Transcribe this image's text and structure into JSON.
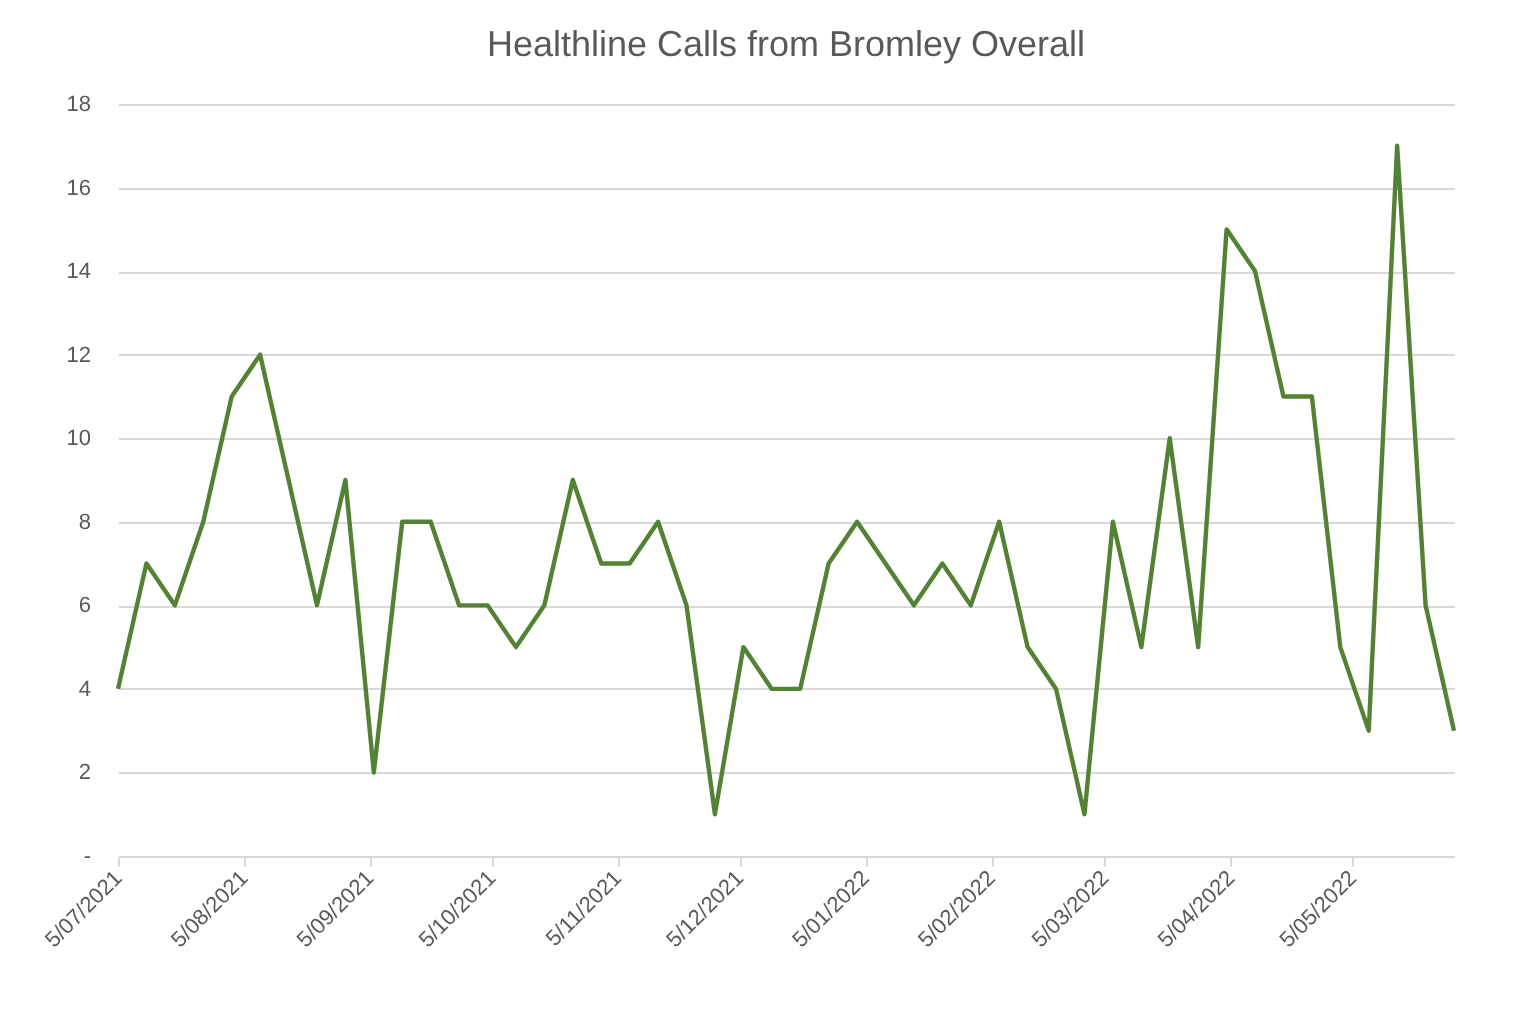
{
  "chart_data": {
    "type": "line",
    "title": "Healthline Calls from Bromley Overall",
    "x": [
      "2021-07-05",
      "2021-07-12",
      "2021-07-19",
      "2021-07-26",
      "2021-08-02",
      "2021-08-09",
      "2021-08-16",
      "2021-08-23",
      "2021-08-30",
      "2021-09-06",
      "2021-09-13",
      "2021-09-20",
      "2021-09-27",
      "2021-10-04",
      "2021-10-11",
      "2021-10-18",
      "2021-10-25",
      "2021-11-01",
      "2021-11-08",
      "2021-11-15",
      "2021-11-22",
      "2021-11-29",
      "2021-12-06",
      "2021-12-13",
      "2021-12-20",
      "2021-12-27",
      "2022-01-03",
      "2022-01-10",
      "2022-01-17",
      "2022-01-24",
      "2022-01-31",
      "2022-02-07",
      "2022-02-14",
      "2022-02-21",
      "2022-02-28",
      "2022-03-07",
      "2022-03-14",
      "2022-03-21",
      "2022-03-28",
      "2022-04-04",
      "2022-04-11",
      "2022-04-18",
      "2022-04-25",
      "2022-05-02",
      "2022-05-09",
      "2022-05-16",
      "2022-05-23",
      "2022-05-30"
    ],
    "series": [
      {
        "color": "#548235",
        "values": [
          4,
          7,
          6,
          8,
          11,
          12,
          9,
          6,
          9,
          2,
          8,
          8,
          6,
          6,
          5,
          6,
          9,
          7,
          7,
          8,
          6,
          1,
          5,
          4,
          4,
          7,
          8,
          7,
          6,
          7,
          6,
          8,
          5,
          4,
          1,
          8,
          5,
          10,
          5,
          15,
          14,
          11,
          11,
          5,
          3,
          17,
          6,
          3
        ]
      }
    ],
    "xlim": [
      "2021-07-05",
      "2022-05-30"
    ],
    "xticks": [
      {
        "value": "2021-07-05",
        "label": "5/07/2021"
      },
      {
        "value": "2021-08-05",
        "label": "5/08/2021"
      },
      {
        "value": "2021-09-05",
        "label": "5/09/2021"
      },
      {
        "value": "2021-10-05",
        "label": "5/10/2021"
      },
      {
        "value": "2021-11-05",
        "label": "5/11/2021"
      },
      {
        "value": "2021-12-05",
        "label": "5/12/2021"
      },
      {
        "value": "2022-01-05",
        "label": "5/01/2022"
      },
      {
        "value": "2022-02-05",
        "label": "5/02/2022"
      },
      {
        "value": "2022-03-05",
        "label": "5/03/2022"
      },
      {
        "value": "2022-04-05",
        "label": "5/04/2022"
      },
      {
        "value": "2022-05-05",
        "label": "5/05/2022"
      }
    ],
    "ylim": [
      0,
      18
    ],
    "yticks": [
      {
        "value": 0,
        "label": "-"
      },
      2,
      4,
      6,
      8,
      10,
      12,
      14,
      16,
      18
    ],
    "grid": "y",
    "marker": "none",
    "line_style": "solid"
  }
}
